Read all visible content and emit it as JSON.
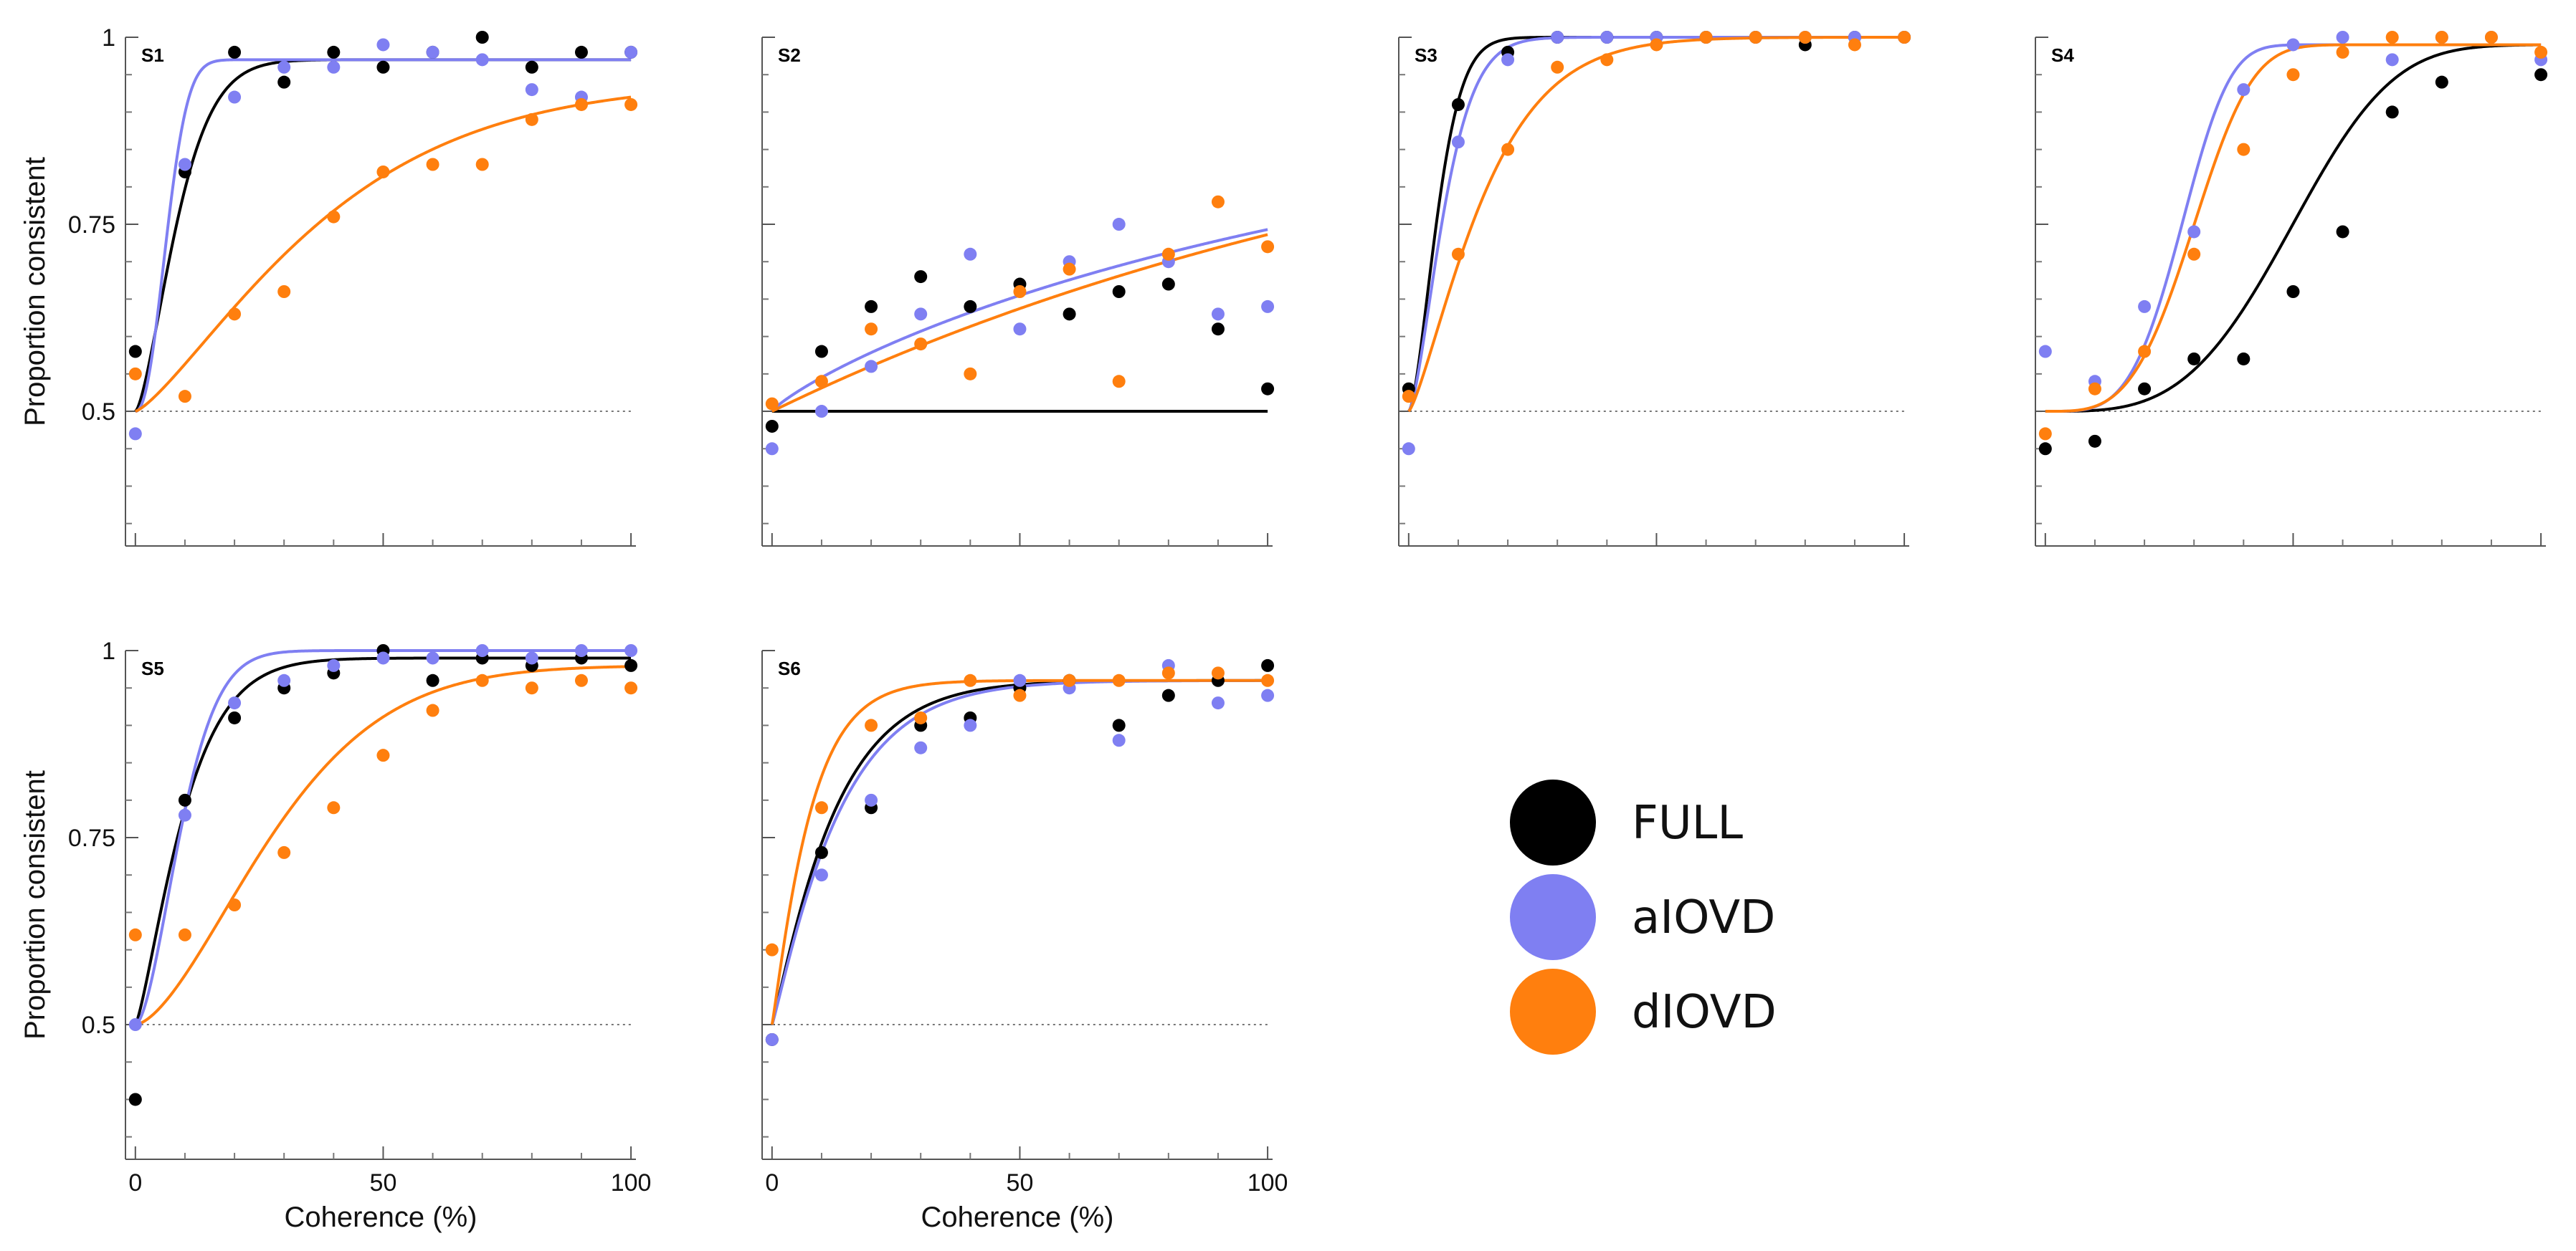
{
  "chart_data": {
    "type": "scatter",
    "xlabel": "Coherence (%)",
    "ylabel": "Proportion consistent",
    "xlim": [
      -2,
      101
    ],
    "ylim": [
      0.32,
      1.0
    ],
    "x_ticks": [
      0,
      50,
      100
    ],
    "x_tick_labels": [
      "0",
      "50",
      "100"
    ],
    "y_ticks": [
      0.5,
      0.75,
      1
    ],
    "y_tick_labels": [
      "0.5",
      "0.75",
      "1"
    ],
    "reference_line": 0.5,
    "colors": {
      "FULL": "#000000",
      "aIOVD": "#7f7ff2",
      "dIOVD": "#ff7f0e"
    },
    "legend": [
      {
        "label": "FULL",
        "color": "#000000"
      },
      {
        "label": "aIOVD",
        "color": "#7f7ff2"
      },
      {
        "label": "dIOVD",
        "color": "#ff7f0e"
      }
    ],
    "x": [
      0,
      10,
      20,
      30,
      40,
      50,
      60,
      70,
      80,
      90,
      100
    ],
    "panels": [
      {
        "label": "S1",
        "series": [
          {
            "name": "FULL",
            "points": [
              0.58,
              0.82,
              0.98,
              0.94,
              0.98,
              0.96,
              0.98,
              1.0,
              0.96,
              0.98,
              0.98
            ],
            "fit": {
              "k": 10,
              "s": 1.5,
              "L": 0.97
            }
          },
          {
            "name": "aIOVD",
            "points": [
              0.47,
              0.83,
              0.92,
              0.96,
              0.96,
              0.99,
              0.98,
              0.97,
              0.93,
              0.92,
              0.98
            ],
            "fit": {
              "k": 7.5,
              "s": 2.2,
              "L": 0.97
            }
          },
          {
            "name": "dIOVD",
            "points": [
              0.55,
              0.52,
              0.63,
              0.66,
              0.76,
              0.82,
              0.83,
              0.83,
              0.89,
              0.91,
              0.91
            ],
            "fit": {
              "k": 42,
              "s": 1.3,
              "L": 0.94
            }
          }
        ]
      },
      {
        "label": "S2",
        "series": [
          {
            "name": "FULL",
            "points": [
              0.48,
              0.58,
              0.64,
              0.68,
              0.64,
              0.67,
              0.63,
              0.66,
              0.67,
              0.61,
              0.53
            ],
            "fit": {
              "k": 1000000,
              "s": 1,
              "L": 0.99
            }
          },
          {
            "name": "aIOVD",
            "points": [
              0.45,
              0.5,
              0.56,
              0.63,
              0.71,
              0.61,
              0.7,
              0.75,
              0.7,
              0.63,
              0.64
            ],
            "fit": {
              "k": 156,
              "s": 0.85,
              "L": 0.99
            }
          },
          {
            "name": "dIOVD",
            "points": [
              0.51,
              0.54,
              0.61,
              0.59,
              0.55,
              0.66,
              0.69,
              0.54,
              0.71,
              0.78,
              0.72
            ],
            "fit": {
              "k": 152,
              "s": 1.0,
              "L": 0.99
            }
          }
        ]
      },
      {
        "label": "S3",
        "series": [
          {
            "name": "FULL",
            "points": [
              0.53,
              0.91,
              0.98,
              1.0,
              1.0,
              1.0,
              1.0,
              1.0,
              0.99,
              1.0,
              1.0
            ],
            "fit": {
              "k": 7,
              "s": 1.6,
              "L": 1.0
            }
          },
          {
            "name": "aIOVD",
            "points": [
              0.45,
              0.86,
              0.97,
              1.0,
              1.0,
              1.0,
              1.0,
              1.0,
              1.0,
              1.0,
              1.0
            ],
            "fit": {
              "k": 8.5,
              "s": 1.5,
              "L": 1.0
            }
          },
          {
            "name": "dIOVD",
            "points": [
              0.52,
              0.71,
              0.85,
              0.96,
              0.97,
              0.99,
              1.0,
              1.0,
              1.0,
              0.99,
              1.0
            ],
            "fit": {
              "k": 17,
              "s": 1.3,
              "L": 1.0
            }
          }
        ]
      },
      {
        "label": "S4",
        "series": [
          {
            "name": "FULL",
            "points": [
              0.45,
              0.46,
              0.53,
              0.57,
              0.57,
              0.66,
              0.74,
              0.9,
              0.94,
              0.95
            ],
            "x": [
              0,
              10,
              20,
              30,
              40,
              50,
              60,
              70,
              80,
              100
            ],
            "fit": {
              "k": 55,
              "s": 3.5,
              "L": 0.99
            }
          },
          {
            "name": "aIOVD",
            "points": [
              0.58,
              0.54,
              0.64,
              0.74,
              0.93,
              0.99,
              1.0,
              0.97,
              1.0,
              1.0,
              0.97
            ],
            "fit": {
              "k": 30,
              "s": 4.0,
              "L": 0.99
            }
          },
          {
            "name": "dIOVD",
            "points": [
              0.47,
              0.53,
              0.58,
              0.71,
              0.85,
              0.95,
              0.98,
              1.0,
              1.0,
              1.0,
              0.98
            ],
            "fit": {
              "k": 33,
              "s": 3.6,
              "L": 0.99
            }
          }
        ]
      },
      {
        "label": "S5",
        "series": [
          {
            "name": "FULL",
            "points": [
              0.4,
              0.8,
              0.91,
              0.95,
              0.97,
              1.0,
              0.96,
              0.99,
              0.98,
              0.99,
              0.98
            ],
            "fit": {
              "k": 11,
              "s": 1.3,
              "L": 0.99
            }
          },
          {
            "name": "aIOVD",
            "points": [
              0.5,
              0.78,
              0.93,
              0.96,
              0.98,
              0.99,
              0.99,
              1.0,
              0.99,
              1.0,
              1.0
            ],
            "fit": {
              "k": 11,
              "s": 1.7,
              "L": 1.0
            }
          },
          {
            "name": "dIOVD",
            "points": [
              0.62,
              0.62,
              0.66,
              0.73,
              0.79,
              0.86,
              0.92,
              0.96,
              0.95,
              0.96,
              0.95
            ],
            "fit": {
              "k": 33,
              "s": 1.6,
              "L": 0.98
            }
          }
        ]
      },
      {
        "label": "S6",
        "series": [
          {
            "name": "FULL",
            "points": [
              0.48,
              0.73,
              0.79,
              0.9,
              0.91,
              0.95,
              0.96,
              0.9,
              0.94,
              0.96,
              0.98
            ],
            "fit": {
              "k": 13,
              "s": 1.1,
              "L": 0.96
            }
          },
          {
            "name": "aIOVD",
            "points": [
              0.48,
              0.7,
              0.8,
              0.87,
              0.9,
              0.96,
              0.95,
              0.88,
              0.98,
              0.93,
              0.94
            ],
            "fit": {
              "k": 14,
              "s": 1.1,
              "L": 0.96
            }
          },
          {
            "name": "dIOVD",
            "points": [
              0.6,
              0.79,
              0.9,
              0.91,
              0.96,
              0.94,
              0.96,
              0.96,
              0.97,
              0.97,
              0.96
            ],
            "fit": {
              "k": 8,
              "s": 1.1,
              "L": 0.96
            }
          }
        ]
      }
    ]
  }
}
